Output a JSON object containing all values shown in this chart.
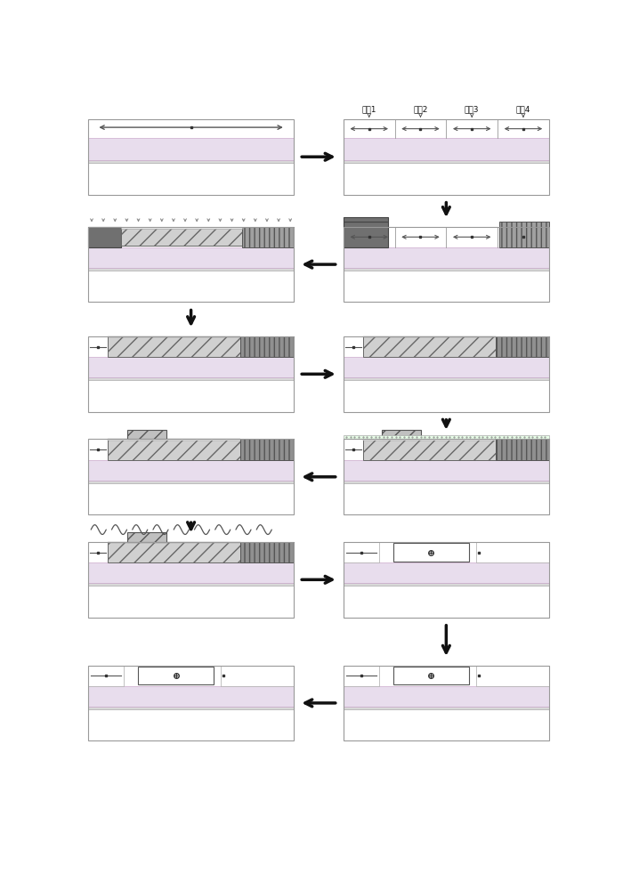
{
  "bg_color": "#ffffff",
  "panel_border": "#999999",
  "layer_lavender": "#e8dded",
  "layer_lavender_light": "#f0e8f0",
  "layer_gray_light": "#c8c8c8",
  "layer_gray_dark": "#707070",
  "layer_green_white": "#f0fff0",
  "layer_hatch_fc": "#c0c0c0",
  "layer_vline_fc": "#808080",
  "arrow_color": "#111111",
  "text_color": "#111111",
  "region_labels": [
    "区块1",
    "区块2",
    "区块3",
    "区块4"
  ],
  "ion_arrow_color": "#888888",
  "wavy_color": "#666666"
}
